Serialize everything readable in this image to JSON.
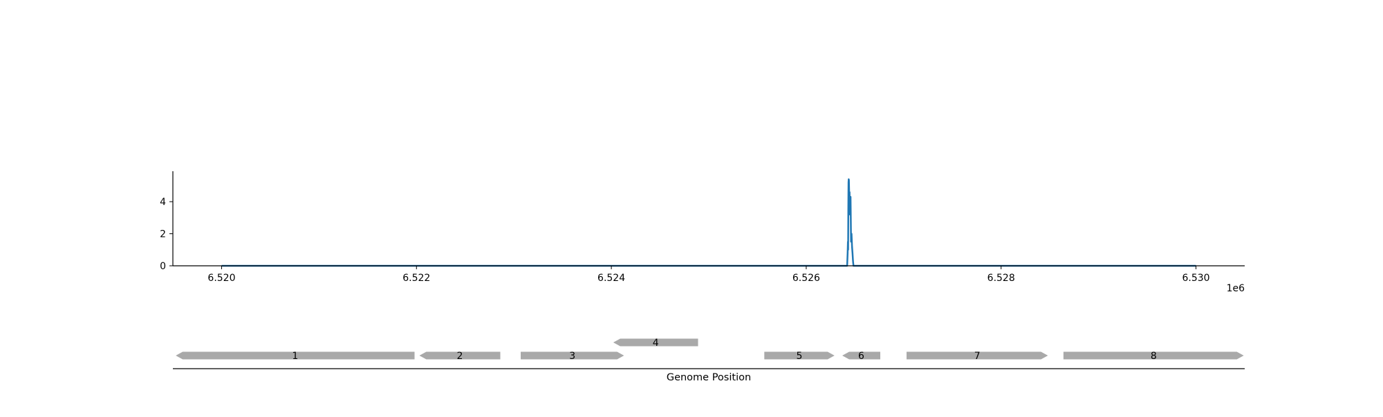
{
  "chart_data": [
    {
      "type": "line",
      "title": "",
      "xlabel": "",
      "ylabel": "",
      "x_offset_label": "1e6",
      "xlim": [
        6519500,
        6530500
      ],
      "ylim": [
        0,
        5.9
      ],
      "x_ticks": [
        6520000,
        6522000,
        6524000,
        6526000,
        6528000,
        6530000
      ],
      "x_tick_labels": [
        "6.520",
        "6.522",
        "6.524",
        "6.526",
        "6.528",
        "6.530"
      ],
      "y_ticks": [
        0,
        2,
        4
      ],
      "y_tick_labels": [
        "0",
        "2",
        "4"
      ],
      "grid": false,
      "spines": [
        "left",
        "bottom"
      ],
      "series": [
        {
          "color": "#1f77b4",
          "x": [
            6520000,
            6526420,
            6526425,
            6526428,
            6526430,
            6526432,
            6526434,
            6526436,
            6526438,
            6526440,
            6526442,
            6526445,
            6526448,
            6526450,
            6526455,
            6526460,
            6526465,
            6526470,
            6526475,
            6526480,
            6526485,
            6530000
          ],
          "y": [
            0,
            0,
            0.8,
            1.5,
            1.0,
            3.5,
            5.2,
            5.4,
            5.35,
            4.8,
            4.2,
            4.6,
            3.2,
            4.1,
            4.3,
            1.5,
            2.0,
            1.2,
            0.8,
            0.3,
            0,
            0
          ]
        }
      ]
    },
    {
      "type": "gene-track",
      "xlabel": "Genome Position",
      "xlim": [
        6519500,
        6530500
      ],
      "color": "#a9a9a9",
      "genes": [
        {
          "label": "1",
          "start": 6519530,
          "end": 6521980,
          "strand": "-",
          "row": 0
        },
        {
          "label": "2",
          "start": 6522030,
          "end": 6522860,
          "strand": "-",
          "row": 0
        },
        {
          "label": "3",
          "start": 6523070,
          "end": 6524130,
          "strand": "+",
          "row": 0
        },
        {
          "label": "4",
          "start": 6524020,
          "end": 6524890,
          "strand": "-",
          "row": 1
        },
        {
          "label": "5",
          "start": 6525570,
          "end": 6526290,
          "strand": "+",
          "row": 0
        },
        {
          "label": "6",
          "start": 6526370,
          "end": 6526760,
          "strand": "-",
          "row": 0
        },
        {
          "label": "7",
          "start": 6527030,
          "end": 6528480,
          "strand": "+",
          "row": 0
        },
        {
          "label": "8",
          "start": 6528640,
          "end": 6530490,
          "strand": "+",
          "row": 0
        }
      ]
    }
  ]
}
